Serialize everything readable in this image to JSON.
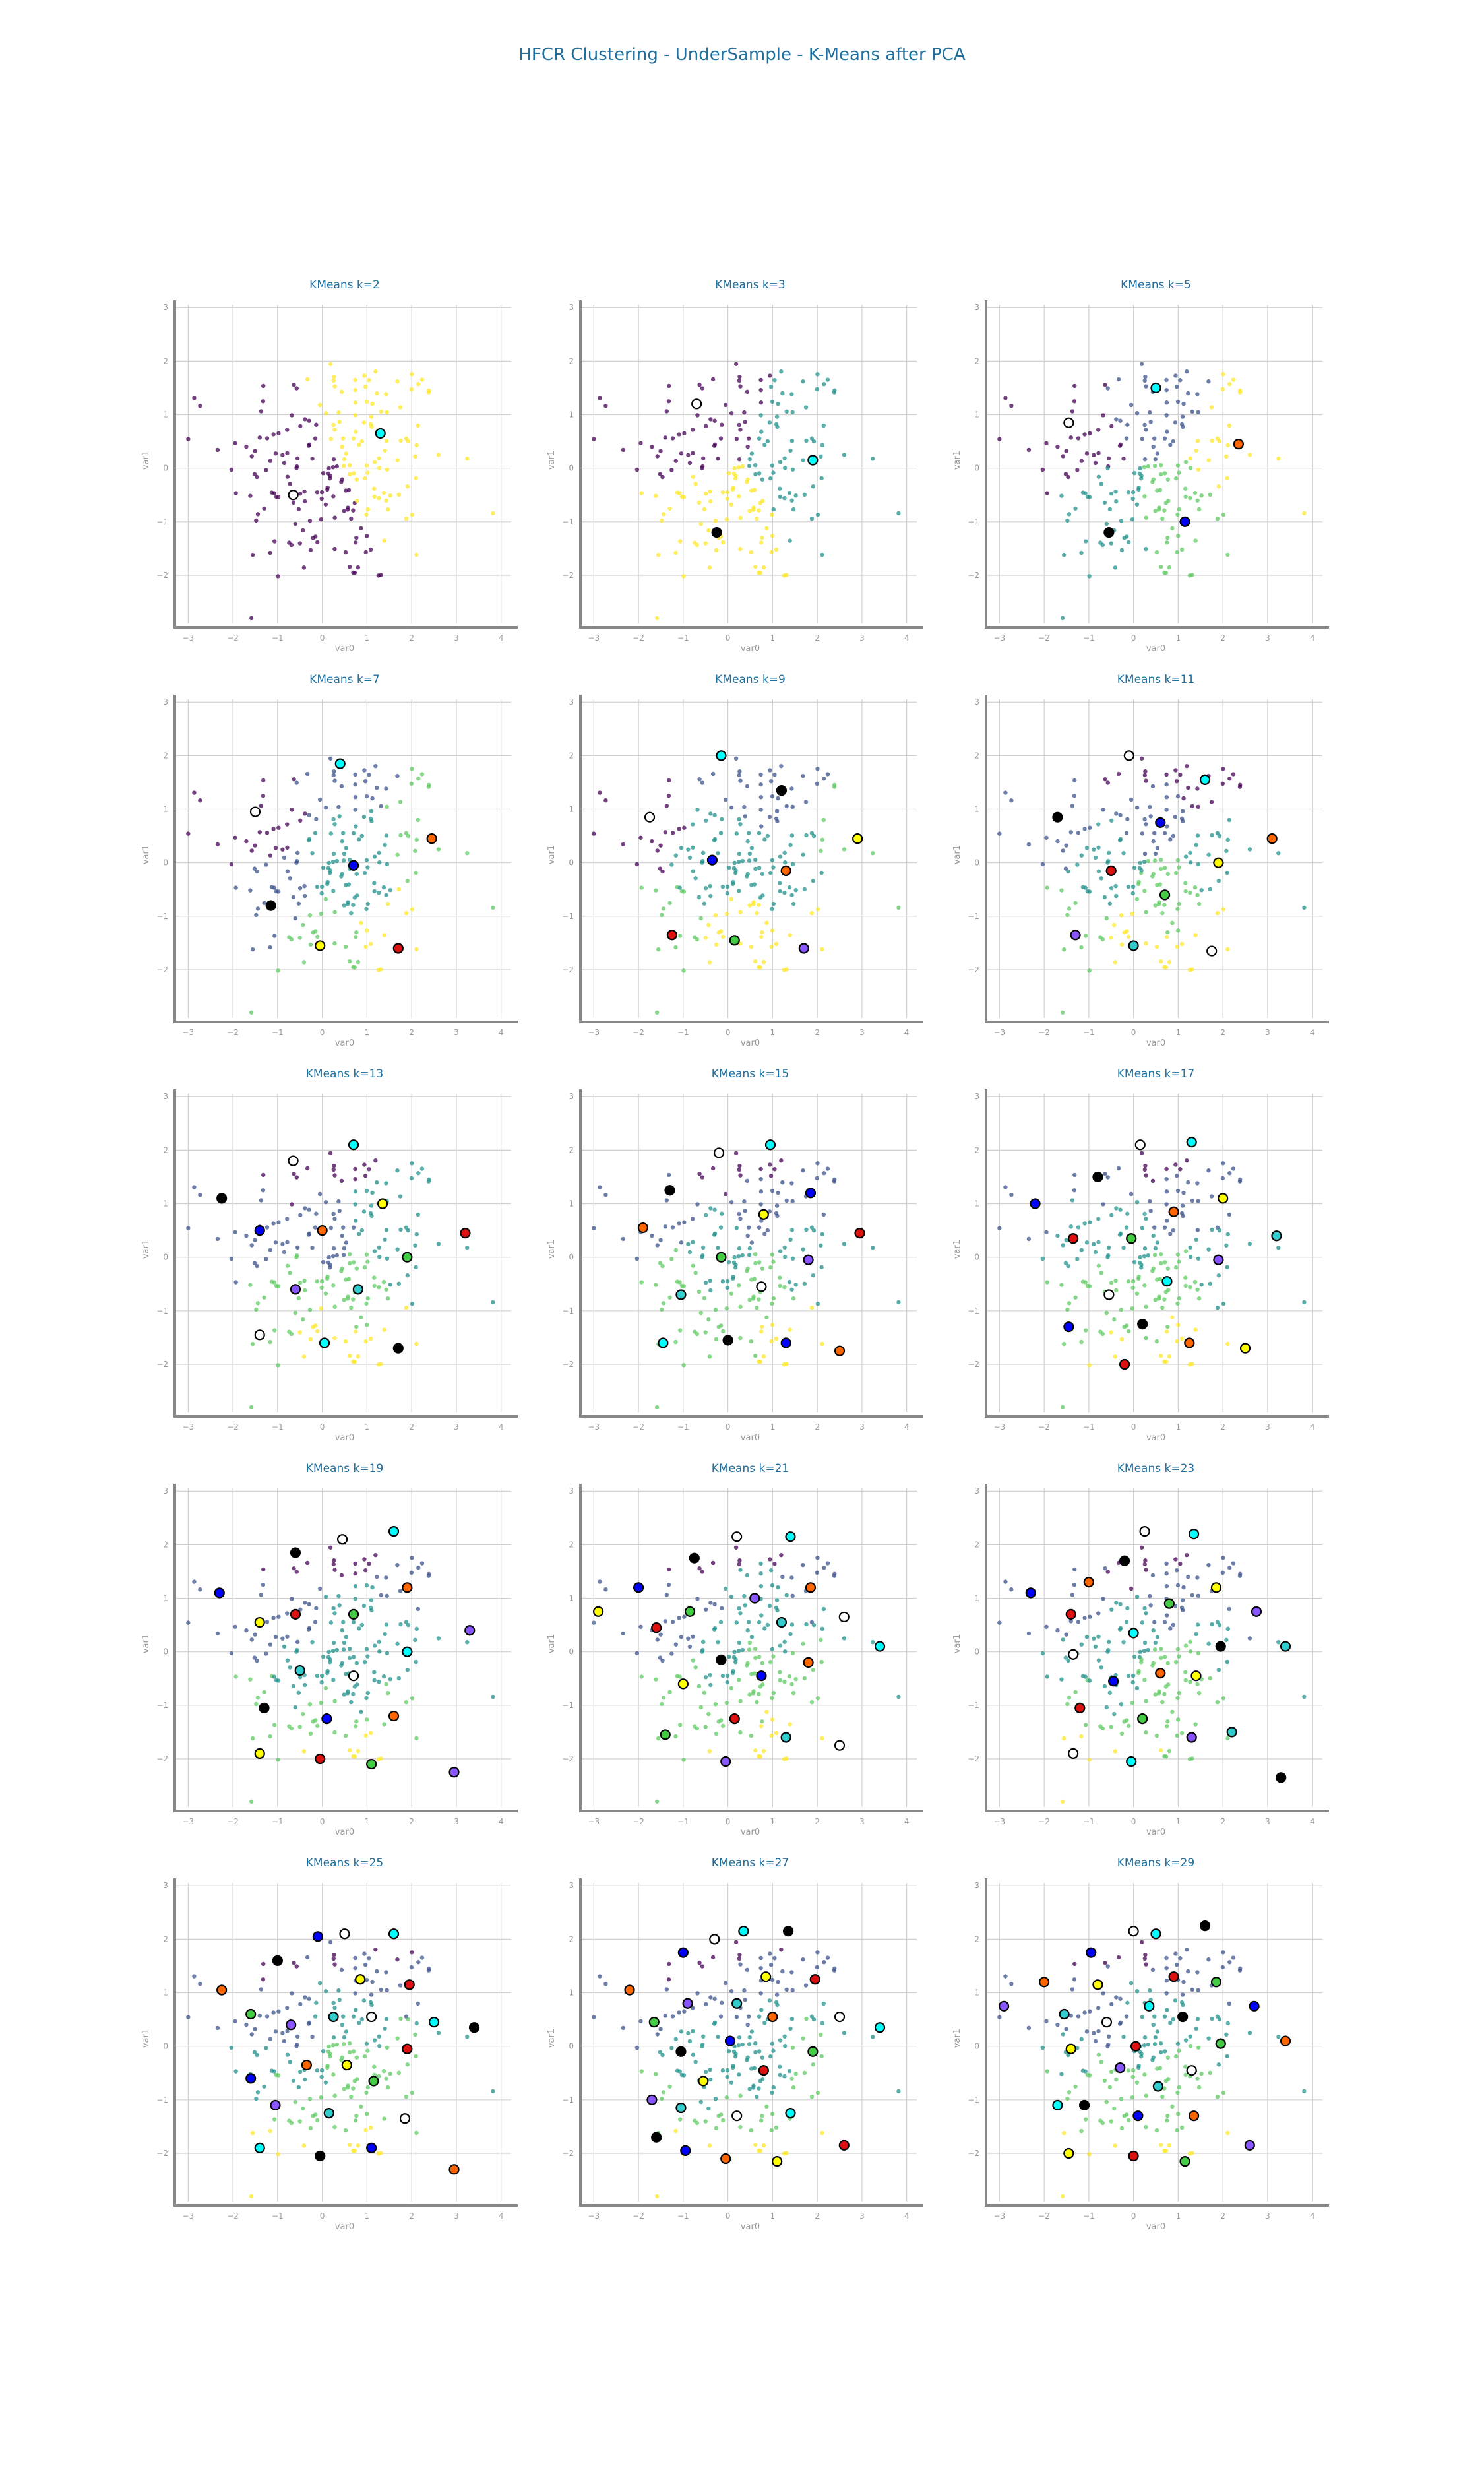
{
  "suptitle": "HFCR Clustering - UnderSample - K-Means after PCA",
  "chart_data": {
    "type": "scatter",
    "grid": true,
    "xlabel": "var0",
    "ylabel": "var1",
    "xlim": [
      -3.3,
      4.3
    ],
    "ylim": [
      -2.9,
      3.2
    ],
    "xticks": [
      -3,
      -2,
      -1,
      0,
      1,
      2,
      3,
      4
    ],
    "yticks": [
      -2,
      -1,
      0,
      1,
      2,
      3
    ],
    "colormap": [
      "#440154",
      "#3b528b",
      "#21918c",
      "#5ec962",
      "#fde725"
    ],
    "center_colors": [
      "#ffffff",
      "#00ffff",
      "#000000",
      "#0000ff",
      "#ff6600",
      "#ffff00",
      "#dd1111",
      "#44cc44",
      "#8855ff",
      "#33cccc"
    ],
    "panels": [
      {
        "title": "KMeans k=2",
        "k": 2,
        "centers": [
          [
            -0.65,
            -0.5
          ],
          [
            1.3,
            0.65
          ]
        ]
      },
      {
        "title": "KMeans k=3",
        "k": 3,
        "centers": [
          [
            -0.7,
            1.2
          ],
          [
            1.9,
            0.15
          ],
          [
            -0.25,
            -1.2
          ]
        ]
      },
      {
        "title": "KMeans k=5",
        "k": 5,
        "centers": [
          [
            -1.45,
            0.85
          ],
          [
            0.5,
            1.5
          ],
          [
            -0.55,
            -1.2
          ],
          [
            1.15,
            -1.0
          ],
          [
            2.35,
            0.45
          ]
        ]
      },
      {
        "title": "KMeans k=7",
        "k": 7,
        "centers": [
          [
            -1.5,
            0.95
          ],
          [
            0.4,
            1.85
          ],
          [
            -1.15,
            -0.8
          ],
          [
            0.7,
            -0.05
          ],
          [
            2.45,
            0.45
          ],
          [
            -0.05,
            -1.55
          ],
          [
            1.7,
            -1.6
          ]
        ]
      },
      {
        "title": "KMeans k=9",
        "k": 9,
        "centers": [
          [
            -1.75,
            0.85
          ],
          [
            -0.15,
            2.0
          ],
          [
            1.2,
            1.35
          ],
          [
            -0.35,
            0.05
          ],
          [
            1.3,
            -0.15
          ],
          [
            2.9,
            0.45
          ],
          [
            -1.25,
            -1.35
          ],
          [
            0.15,
            -1.45
          ],
          [
            1.7,
            -1.6
          ]
        ]
      },
      {
        "title": "KMeans k=11",
        "k": 11,
        "centers": [
          [
            -0.1,
            2.0
          ],
          [
            1.6,
            1.55
          ],
          [
            -1.7,
            0.85
          ],
          [
            0.6,
            0.75
          ],
          [
            3.1,
            0.45
          ],
          [
            1.9,
            0.0
          ],
          [
            -0.5,
            -0.15
          ],
          [
            0.7,
            -0.6
          ],
          [
            -1.3,
            -1.35
          ],
          [
            0.0,
            -1.55
          ],
          [
            1.75,
            -1.65
          ]
        ]
      },
      {
        "title": "KMeans k=13",
        "k": 13,
        "centers": [
          [
            -0.65,
            1.8
          ],
          [
            0.7,
            2.1
          ],
          [
            -2.25,
            1.1
          ],
          [
            -1.4,
            0.5
          ],
          [
            0.0,
            0.5
          ],
          [
            1.35,
            1.0
          ],
          [
            3.2,
            0.45
          ],
          [
            1.9,
            0.0
          ],
          [
            -0.6,
            -0.6
          ],
          [
            0.8,
            -0.6
          ],
          [
            -1.4,
            -1.45
          ],
          [
            0.05,
            -1.6
          ],
          [
            1.7,
            -1.7
          ]
        ]
      },
      {
        "title": "KMeans k=17",
        "k": 17,
        "centers": [
          [
            0.15,
            2.1
          ],
          [
            1.3,
            2.15
          ],
          [
            -0.8,
            1.5
          ],
          [
            -2.2,
            1.0
          ],
          [
            0.9,
            0.85
          ],
          [
            2.0,
            1.1
          ],
          [
            -1.35,
            0.35
          ],
          [
            -0.05,
            0.35
          ],
          [
            1.9,
            -0.05
          ],
          [
            3.2,
            0.4
          ],
          [
            -0.55,
            -0.7
          ],
          [
            0.75,
            -0.45
          ],
          [
            0.2,
            -1.25
          ],
          [
            -1.45,
            -1.3
          ],
          [
            1.25,
            -1.6
          ],
          [
            2.5,
            -1.7
          ],
          [
            -0.2,
            -2.0
          ]
        ]
      }
    ],
    "panels_more": [
      {
        "title": "KMeans k=15",
        "k": 15,
        "centers": [
          [
            -0.2,
            1.95
          ],
          [
            0.95,
            2.1
          ],
          [
            -1.3,
            1.25
          ],
          [
            1.85,
            1.2
          ],
          [
            -1.9,
            0.55
          ],
          [
            0.8,
            0.8
          ],
          [
            2.95,
            0.45
          ],
          [
            -0.15,
            0.0
          ],
          [
            1.8,
            -0.05
          ],
          [
            -1.05,
            -0.7
          ],
          [
            0.75,
            -0.55
          ],
          [
            -1.45,
            -1.6
          ],
          [
            0.0,
            -1.55
          ],
          [
            1.3,
            -1.6
          ],
          [
            2.5,
            -1.75
          ]
        ]
      },
      {
        "title": "KMeans k=19",
        "k": 19,
        "centers": [
          [
            0.45,
            2.1
          ],
          [
            1.6,
            2.25
          ],
          [
            -0.6,
            1.85
          ],
          [
            -2.3,
            1.1
          ],
          [
            1.9,
            1.2
          ],
          [
            -1.4,
            0.55
          ],
          [
            -0.6,
            0.7
          ],
          [
            0.7,
            0.7
          ],
          [
            3.3,
            0.4
          ],
          [
            -0.5,
            -0.35
          ],
          [
            0.7,
            -0.45
          ],
          [
            1.9,
            0.0
          ],
          [
            -1.3,
            -1.05
          ],
          [
            0.1,
            -1.25
          ],
          [
            1.6,
            -1.2
          ],
          [
            -1.4,
            -1.9
          ],
          [
            -0.05,
            -2.0
          ],
          [
            1.1,
            -2.1
          ],
          [
            2.95,
            -2.25
          ]
        ]
      },
      {
        "title": "KMeans k=21",
        "k": 21,
        "centers": [
          [
            0.2,
            2.15
          ],
          [
            1.4,
            2.15
          ],
          [
            -0.75,
            1.75
          ],
          [
            -2.0,
            1.2
          ],
          [
            1.85,
            1.2
          ],
          [
            -2.9,
            0.75
          ],
          [
            -1.6,
            0.45
          ],
          [
            -0.85,
            0.75
          ],
          [
            0.6,
            1.0
          ],
          [
            1.2,
            0.55
          ],
          [
            2.6,
            0.65
          ],
          [
            3.4,
            0.1
          ],
          [
            -0.15,
            -0.15
          ],
          [
            0.75,
            -0.45
          ],
          [
            1.8,
            -0.2
          ],
          [
            -1.0,
            -0.6
          ],
          [
            0.15,
            -1.25
          ],
          [
            -1.4,
            -1.55
          ],
          [
            -0.05,
            -2.05
          ],
          [
            1.3,
            -1.6
          ],
          [
            2.5,
            -1.75
          ]
        ]
      },
      {
        "title": "KMeans k=23",
        "k": 23,
        "centers": [
          [
            0.25,
            2.25
          ],
          [
            1.35,
            2.2
          ],
          [
            -0.2,
            1.7
          ],
          [
            -2.3,
            1.1
          ],
          [
            -1.0,
            1.3
          ],
          [
            1.85,
            1.2
          ],
          [
            -1.4,
            0.7
          ],
          [
            0.8,
            0.9
          ],
          [
            2.75,
            0.75
          ],
          [
            3.4,
            0.1
          ],
          [
            -1.35,
            -0.05
          ],
          [
            0.0,
            0.35
          ],
          [
            1.95,
            0.1
          ],
          [
            -0.45,
            -0.55
          ],
          [
            0.6,
            -0.4
          ],
          [
            1.4,
            -0.45
          ],
          [
            -1.2,
            -1.05
          ],
          [
            0.2,
            -1.25
          ],
          [
            1.3,
            -1.6
          ],
          [
            2.2,
            -1.5
          ],
          [
            -1.35,
            -1.9
          ],
          [
            -0.05,
            -2.05
          ],
          [
            3.3,
            -2.35
          ]
        ]
      },
      {
        "title": "KMeans k=25",
        "k": 25,
        "centers": [
          [
            0.5,
            2.1
          ],
          [
            1.6,
            2.1
          ],
          [
            -1.0,
            1.6
          ],
          [
            -0.1,
            2.05
          ],
          [
            -2.25,
            1.05
          ],
          [
            0.85,
            1.25
          ],
          [
            1.95,
            1.15
          ],
          [
            -1.6,
            0.6
          ],
          [
            -0.7,
            0.4
          ],
          [
            0.25,
            0.55
          ],
          [
            1.1,
            0.55
          ],
          [
            2.5,
            0.45
          ],
          [
            3.4,
            0.35
          ],
          [
            -1.6,
            -0.6
          ],
          [
            -0.35,
            -0.35
          ],
          [
            0.55,
            -0.35
          ],
          [
            1.9,
            -0.05
          ],
          [
            1.15,
            -0.65
          ],
          [
            -1.05,
            -1.1
          ],
          [
            0.15,
            -1.25
          ],
          [
            1.85,
            -1.35
          ],
          [
            -1.4,
            -1.9
          ],
          [
            -0.05,
            -2.05
          ],
          [
            1.1,
            -1.9
          ],
          [
            2.95,
            -2.3
          ]
        ]
      },
      {
        "title": "KMeans k=27",
        "k": 27,
        "centers": [
          [
            -0.3,
            2.0
          ],
          [
            0.35,
            2.15
          ],
          [
            1.35,
            2.15
          ],
          [
            -1.0,
            1.75
          ],
          [
            -2.2,
            1.05
          ],
          [
            0.85,
            1.3
          ],
          [
            1.95,
            1.25
          ],
          [
            -1.65,
            0.45
          ],
          [
            -0.9,
            0.8
          ],
          [
            0.2,
            0.8
          ],
          [
            2.5,
            0.55
          ],
          [
            3.4,
            0.35
          ],
          [
            -1.05,
            -0.1
          ],
          [
            0.05,
            0.1
          ],
          [
            1.0,
            0.55
          ],
          [
            -0.55,
            -0.65
          ],
          [
            0.8,
            -0.45
          ],
          [
            1.9,
            -0.1
          ],
          [
            -1.7,
            -1.0
          ],
          [
            -1.05,
            -1.15
          ],
          [
            0.2,
            -1.3
          ],
          [
            1.4,
            -1.25
          ],
          [
            -1.6,
            -1.7
          ],
          [
            -0.95,
            -1.95
          ],
          [
            -0.05,
            -2.1
          ],
          [
            1.1,
            -2.15
          ],
          [
            2.6,
            -1.85
          ]
        ]
      },
      {
        "title": "KMeans k=29",
        "k": 29,
        "centers": [
          [
            0.0,
            2.15
          ],
          [
            0.5,
            2.1
          ],
          [
            1.6,
            2.25
          ],
          [
            -0.95,
            1.75
          ],
          [
            -2.0,
            1.2
          ],
          [
            -0.8,
            1.15
          ],
          [
            0.9,
            1.3
          ],
          [
            1.85,
            1.2
          ],
          [
            -2.9,
            0.75
          ],
          [
            -1.55,
            0.6
          ],
          [
            -0.6,
            0.45
          ],
          [
            0.35,
            0.75
          ],
          [
            1.1,
            0.55
          ],
          [
            2.7,
            0.75
          ],
          [
            3.4,
            0.1
          ],
          [
            -1.4,
            -0.05
          ],
          [
            0.05,
            0.0
          ],
          [
            1.95,
            0.05
          ],
          [
            -0.3,
            -0.4
          ],
          [
            0.55,
            -0.75
          ],
          [
            1.3,
            -0.45
          ],
          [
            -1.7,
            -1.1
          ],
          [
            -1.1,
            -1.1
          ],
          [
            0.1,
            -1.3
          ],
          [
            1.35,
            -1.3
          ],
          [
            -1.45,
            -2.0
          ],
          [
            0.0,
            -2.05
          ],
          [
            1.15,
            -2.15
          ],
          [
            2.6,
            -1.85
          ]
        ]
      }
    ]
  }
}
